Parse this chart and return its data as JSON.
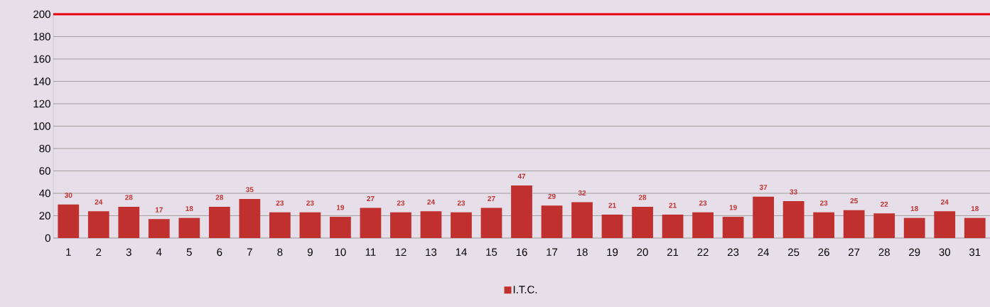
{
  "chart_data": {
    "type": "bar",
    "categories": [
      "1",
      "2",
      "3",
      "4",
      "5",
      "6",
      "7",
      "8",
      "9",
      "10",
      "11",
      "12",
      "13",
      "14",
      "15",
      "16",
      "17",
      "18",
      "19",
      "20",
      "21",
      "22",
      "23",
      "24",
      "25",
      "26",
      "27",
      "28",
      "29",
      "30",
      "31"
    ],
    "series": [
      {
        "name": "I.T.C.",
        "color": "#c0302e",
        "values": [
          30,
          24,
          28,
          17,
          18,
          28,
          35,
          23,
          23,
          19,
          27,
          23,
          24,
          23,
          27,
          47,
          29,
          32,
          21,
          28,
          21,
          23,
          19,
          37,
          33,
          23,
          25,
          22,
          18,
          24,
          18
        ]
      }
    ],
    "ylim": [
      0,
      200
    ],
    "yticks": [
      0,
      20,
      40,
      60,
      80,
      100,
      120,
      140,
      160,
      180,
      200
    ],
    "ref_lines": [
      {
        "axis": "y",
        "value": 200,
        "color": "#e8000b"
      }
    ],
    "grid": "y",
    "legend": "bottom",
    "data_labels": true
  }
}
